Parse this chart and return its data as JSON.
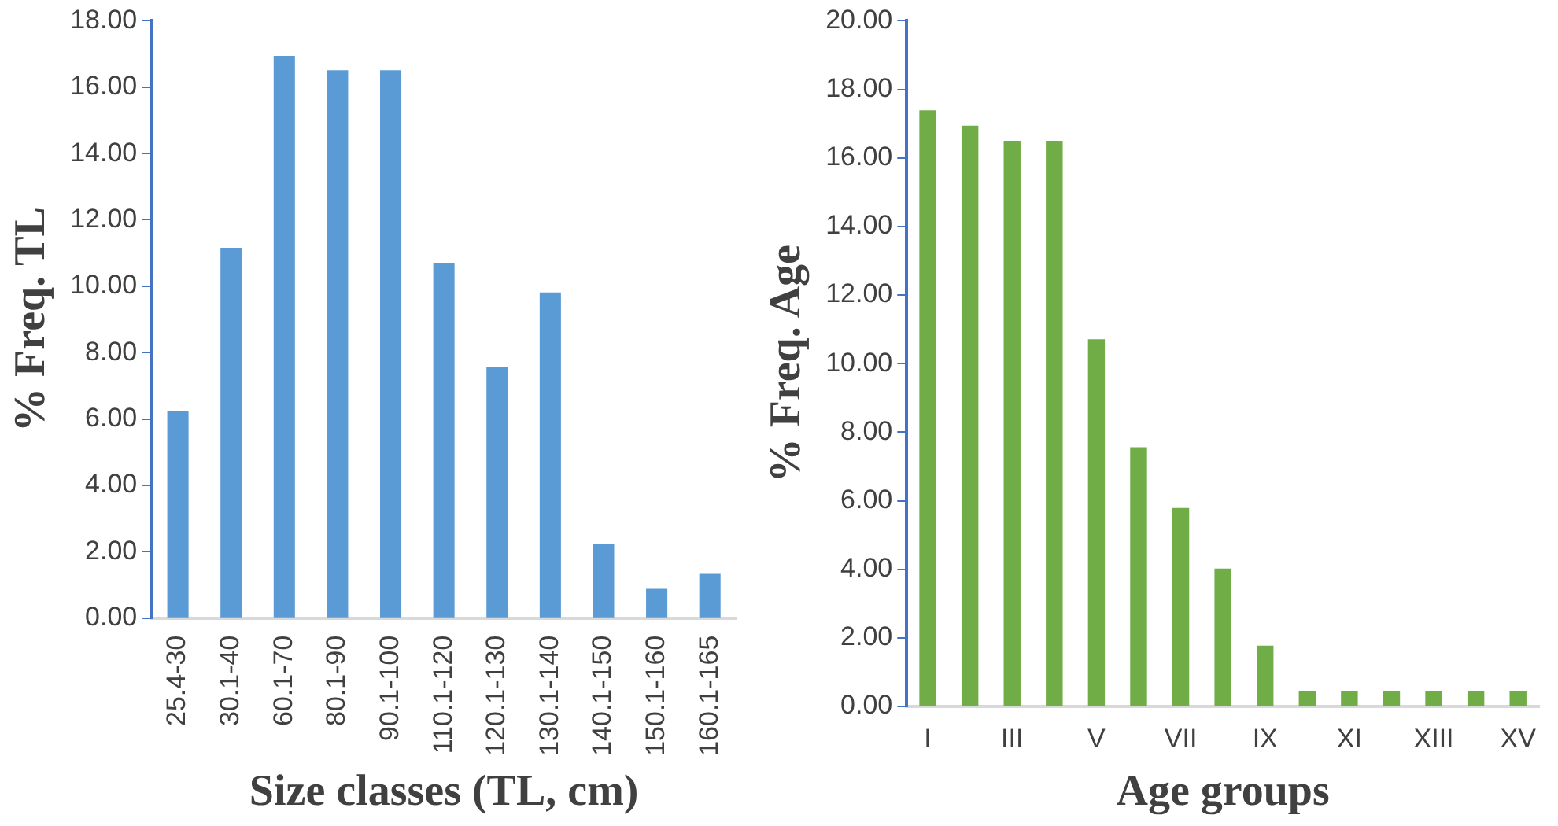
{
  "chart_data": [
    {
      "type": "bar",
      "xlabel": "Size classes (TL, cm)",
      "ylabel": "% Freq. TL",
      "categories": [
        "25.4-30",
        "30.1-40",
        "60.1-70",
        "80.1-90",
        "90.1-100",
        "110.1-120",
        "120.1-130",
        "130.1-140",
        "140.1-150",
        "150.1-160",
        "160.1-165"
      ],
      "values": [
        6.23,
        11.16,
        16.94,
        16.51,
        16.51,
        10.71,
        7.58,
        9.81,
        2.23,
        0.88,
        1.33
      ],
      "color": "#5b9bd5",
      "ylim": [
        0,
        18
      ],
      "yticks": [
        {
          "value": 0,
          "label": "0.00"
        },
        {
          "value": 2,
          "label": "2.00"
        },
        {
          "value": 4,
          "label": "4.00"
        },
        {
          "value": 6,
          "label": "6.00"
        },
        {
          "value": 8,
          "label": "8.00"
        },
        {
          "value": 10,
          "label": "10.00"
        },
        {
          "value": 12,
          "label": "12.00"
        },
        {
          "value": 14,
          "label": "14.00"
        },
        {
          "value": 16,
          "label": "16.00"
        },
        {
          "value": 18,
          "label": "18.00"
        }
      ],
      "grid": false,
      "legend": false
    },
    {
      "type": "bar",
      "xlabel": "Age groups",
      "ylabel": "% Freq. Age",
      "categories": [
        "I",
        null,
        "III",
        null,
        "V",
        null,
        "VII",
        null,
        "IX",
        null,
        "XI",
        null,
        "XIII",
        null,
        "XV"
      ],
      "values": [
        17.39,
        16.94,
        16.5,
        16.5,
        10.71,
        7.56,
        5.79,
        4.02,
        1.77,
        0.44,
        0.44,
        0.44,
        0.44,
        0.44,
        0.44
      ],
      "color": "#70ad47",
      "ylim": [
        0,
        20
      ],
      "yticks": [
        {
          "value": 0,
          "label": "0.00"
        },
        {
          "value": 2,
          "label": "2.00"
        },
        {
          "value": 4,
          "label": "4.00"
        },
        {
          "value": 6,
          "label": "6.00"
        },
        {
          "value": 8,
          "label": "8.00"
        },
        {
          "value": 10,
          "label": "10.00"
        },
        {
          "value": 12,
          "label": "12.00"
        },
        {
          "value": 14,
          "label": "14.00"
        },
        {
          "value": 16,
          "label": "16.00"
        },
        {
          "value": 18,
          "label": "18.00"
        },
        {
          "value": 20,
          "label": "20.00"
        }
      ],
      "grid": false,
      "legend": false
    }
  ]
}
